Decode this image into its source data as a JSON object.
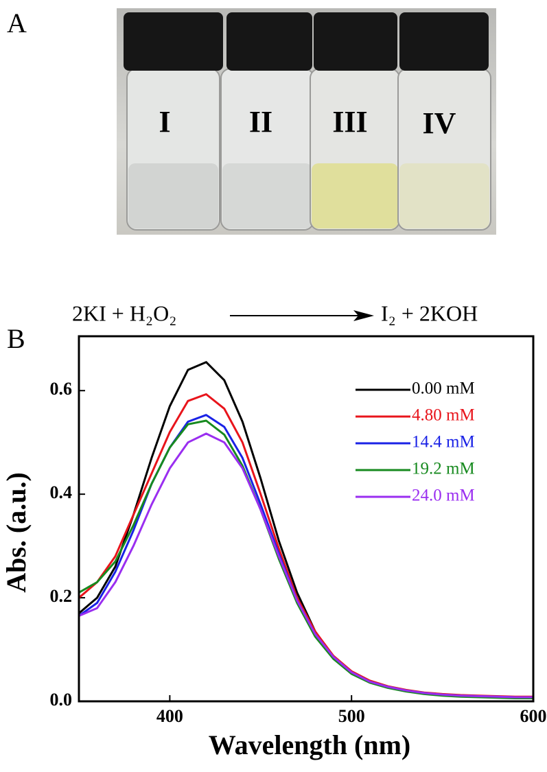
{
  "panel_a": {
    "label": "A",
    "vials": [
      "I",
      "II",
      "III",
      "IV"
    ]
  },
  "panel_b": {
    "label": "B",
    "equation": {
      "reactants": "2KI + H₂O₂",
      "products": "I₂ + 2KOH"
    }
  },
  "chart_data": {
    "type": "line",
    "x_label": "Wavelength (nm)",
    "y_label": "Abs. (a.u.)",
    "x": [
      350,
      360,
      370,
      380,
      390,
      400,
      410,
      420,
      430,
      440,
      450,
      460,
      470,
      480,
      490,
      500,
      510,
      520,
      530,
      540,
      550,
      560,
      570,
      580,
      590,
      600
    ],
    "series": [
      {
        "name": "0.00 mM",
        "color": "#000000",
        "values": [
          0.17,
          0.2,
          0.26,
          0.36,
          0.47,
          0.57,
          0.64,
          0.655,
          0.62,
          0.54,
          0.43,
          0.31,
          0.21,
          0.135,
          0.085,
          0.055,
          0.037,
          0.027,
          0.02,
          0.016,
          0.013,
          0.011,
          0.01,
          0.009,
          0.008,
          0.007
        ]
      },
      {
        "name": "4.80 mM",
        "color": "#e8141b",
        "values": [
          0.2,
          0.23,
          0.28,
          0.36,
          0.44,
          0.52,
          0.58,
          0.593,
          0.565,
          0.5,
          0.4,
          0.295,
          0.2,
          0.135,
          0.088,
          0.058,
          0.04,
          0.029,
          0.022,
          0.017,
          0.014,
          0.012,
          0.011,
          0.01,
          0.009,
          0.009
        ]
      },
      {
        "name": "14.4 mM",
        "color": "#1a22e6",
        "values": [
          0.165,
          0.19,
          0.25,
          0.33,
          0.42,
          0.49,
          0.54,
          0.553,
          0.53,
          0.47,
          0.38,
          0.285,
          0.195,
          0.13,
          0.085,
          0.056,
          0.038,
          0.028,
          0.021,
          0.016,
          0.013,
          0.011,
          0.01,
          0.009,
          0.008,
          0.007
        ]
      },
      {
        "name": "19.2 mM",
        "color": "#178a1f",
        "values": [
          0.21,
          0.23,
          0.27,
          0.34,
          0.42,
          0.49,
          0.535,
          0.542,
          0.515,
          0.455,
          0.37,
          0.275,
          0.19,
          0.125,
          0.082,
          0.053,
          0.036,
          0.026,
          0.019,
          0.014,
          0.011,
          0.009,
          0.008,
          0.007,
          0.006,
          0.006
        ]
      },
      {
        "name": "24.0 mM",
        "color": "#9a2ef0",
        "values": [
          0.165,
          0.18,
          0.23,
          0.3,
          0.38,
          0.45,
          0.5,
          0.517,
          0.5,
          0.45,
          0.37,
          0.28,
          0.195,
          0.13,
          0.086,
          0.056,
          0.038,
          0.028,
          0.021,
          0.016,
          0.013,
          0.011,
          0.01,
          0.009,
          0.008,
          0.008
        ]
      }
    ],
    "xlim": [
      350,
      600
    ],
    "xticks": [
      400,
      500,
      600
    ],
    "ylim": [
      0,
      0.705
    ],
    "yticks": [
      {
        "value": 0,
        "label": "0.0"
      },
      0.2,
      0.4,
      0.6
    ],
    "legend": "upper right"
  }
}
